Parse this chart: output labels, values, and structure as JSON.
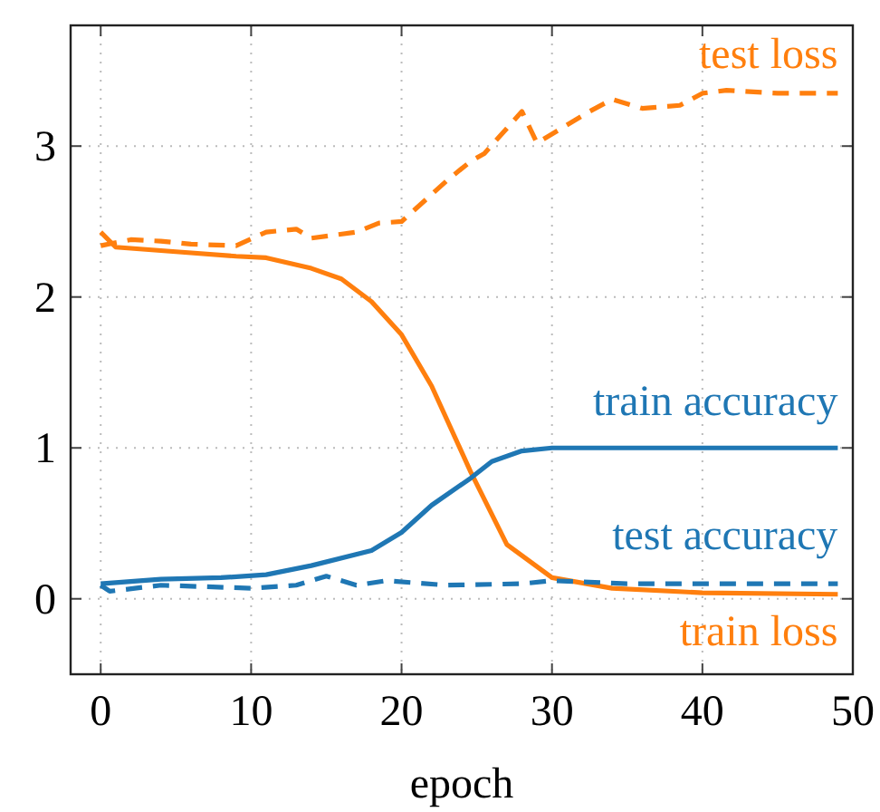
{
  "chart_data": {
    "type": "line",
    "xlabel": "epoch",
    "xlim": [
      -2,
      50
    ],
    "ylim": [
      -0.5,
      3.8
    ],
    "xticks": [
      0,
      10,
      20,
      30,
      40,
      50
    ],
    "yticks": [
      0,
      1,
      2,
      3
    ],
    "grid": true,
    "series": [
      {
        "name": "test loss",
        "color": "#ff7f0e",
        "line_style": "dashed",
        "x": [
          0,
          2,
          4,
          6,
          9,
          11,
          13,
          14,
          17,
          18.5,
          20,
          23,
          24.6,
          25.5,
          28,
          29,
          32.5,
          34,
          36,
          38.5,
          40,
          41.6,
          45,
          49
        ],
        "values": [
          2.34,
          2.38,
          2.37,
          2.35,
          2.34,
          2.43,
          2.45,
          2.39,
          2.43,
          2.49,
          2.5,
          2.77,
          2.9,
          2.95,
          3.23,
          3.02,
          3.23,
          3.31,
          3.25,
          3.27,
          3.35,
          3.37,
          3.35,
          3.35
        ]
      },
      {
        "name": "train loss",
        "color": "#ff7f0e",
        "line_style": "solid",
        "x": [
          0,
          1,
          5,
          9,
          11,
          14,
          16,
          18,
          20,
          22,
          24.6,
          27,
          30,
          34,
          40,
          49
        ],
        "values": [
          2.43,
          2.33,
          2.3,
          2.27,
          2.26,
          2.19,
          2.12,
          1.97,
          1.75,
          1.41,
          0.84,
          0.36,
          0.14,
          0.07,
          0.04,
          0.03
        ]
      },
      {
        "name": "train accuracy",
        "color": "#1f77b4",
        "line_style": "solid",
        "x": [
          0,
          4,
          8,
          11,
          14,
          18,
          20,
          22,
          24.6,
          26,
          28,
          30,
          35,
          49
        ],
        "values": [
          0.1,
          0.13,
          0.14,
          0.16,
          0.22,
          0.32,
          0.44,
          0.62,
          0.8,
          0.91,
          0.98,
          1.0,
          1.0,
          1.0
        ]
      },
      {
        "name": "test accuracy",
        "color": "#1f77b4",
        "line_style": "dashed",
        "x": [
          0,
          0.6,
          4,
          7,
          10,
          13,
          15,
          17,
          19,
          23,
          28,
          30,
          35,
          40,
          49
        ],
        "values": [
          0.09,
          0.05,
          0.09,
          0.08,
          0.07,
          0.09,
          0.15,
          0.09,
          0.12,
          0.09,
          0.1,
          0.12,
          0.1,
          0.1,
          0.1
        ]
      }
    ]
  }
}
